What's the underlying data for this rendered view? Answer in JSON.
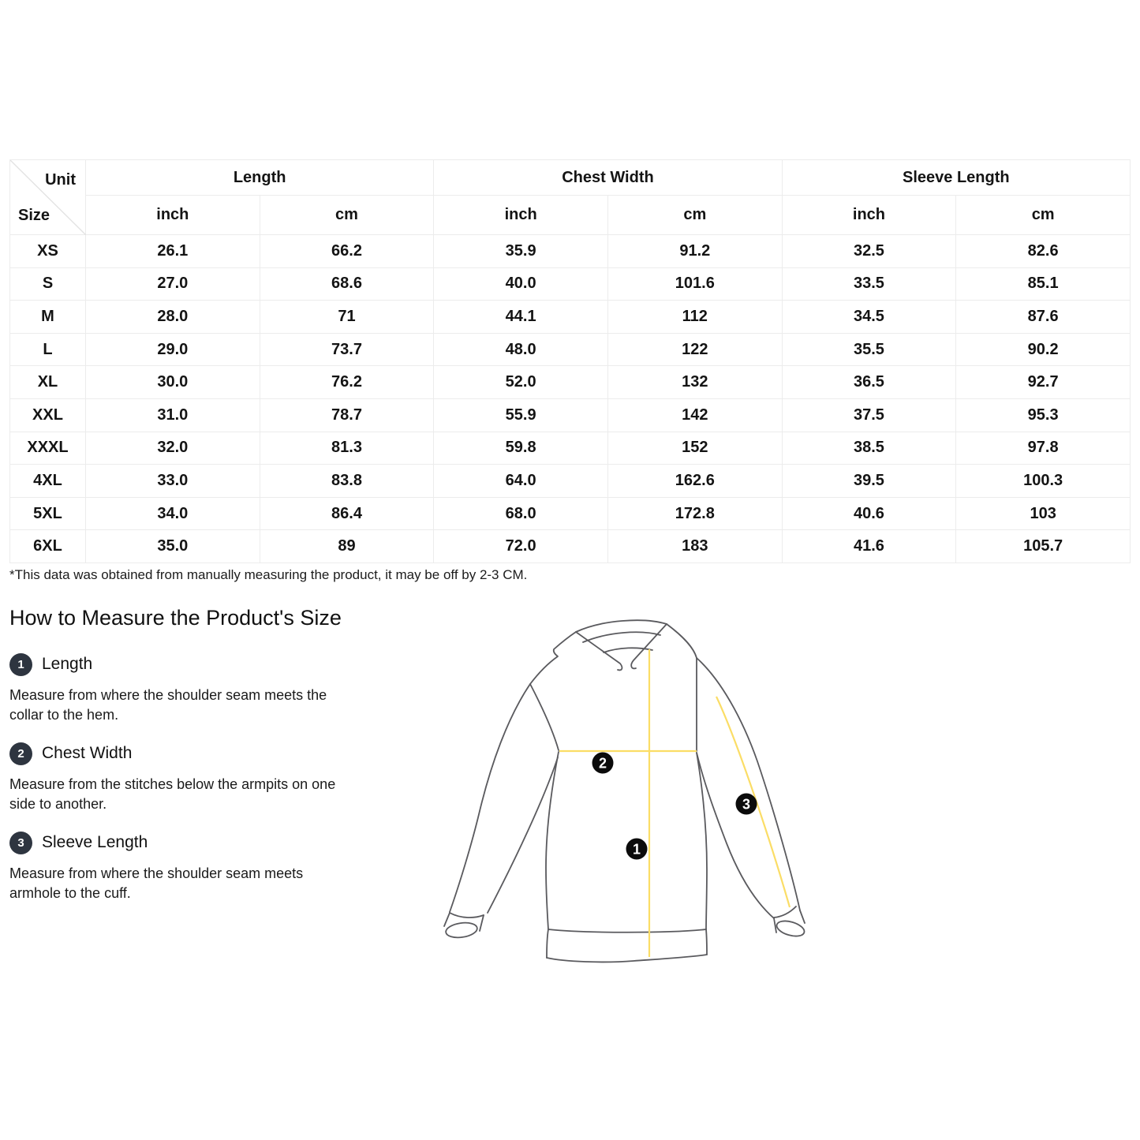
{
  "colors": {
    "accent_yellow": "#FBDD66",
    "marker_black": "#0b0b0b",
    "bullet_dark": "#2E3540",
    "table_border": "#ececec",
    "text_primary": "#141414"
  },
  "table": {
    "corner": {
      "unit_label": "Unit",
      "size_label": "Size"
    },
    "groups": [
      {
        "label": "Length"
      },
      {
        "label": "Chest Width"
      },
      {
        "label": "Sleeve Length"
      }
    ],
    "unit_headers": [
      "inch",
      "cm",
      "inch",
      "cm",
      "inch",
      "cm"
    ],
    "rows": [
      {
        "size": "XS",
        "cells": [
          "26.1",
          "66.2",
          "35.9",
          "91.2",
          "32.5",
          "82.6"
        ]
      },
      {
        "size": "S",
        "cells": [
          "27.0",
          "68.6",
          "40.0",
          "101.6",
          "33.5",
          "85.1"
        ]
      },
      {
        "size": "M",
        "cells": [
          "28.0",
          "71",
          "44.1",
          "112",
          "34.5",
          "87.6"
        ]
      },
      {
        "size": "L",
        "cells": [
          "29.0",
          "73.7",
          "48.0",
          "122",
          "35.5",
          "90.2"
        ]
      },
      {
        "size": "XL",
        "cells": [
          "30.0",
          "76.2",
          "52.0",
          "132",
          "36.5",
          "92.7"
        ]
      },
      {
        "size": "XXL",
        "cells": [
          "31.0",
          "78.7",
          "55.9",
          "142",
          "37.5",
          "95.3"
        ]
      },
      {
        "size": "XXXL",
        "cells": [
          "32.0",
          "81.3",
          "59.8",
          "152",
          "38.5",
          "97.8"
        ]
      },
      {
        "size": "4XL",
        "cells": [
          "33.0",
          "83.8",
          "64.0",
          "162.6",
          "39.5",
          "100.3"
        ]
      },
      {
        "size": "5XL",
        "cells": [
          "34.0",
          "86.4",
          "68.0",
          "172.8",
          "40.6",
          "103"
        ]
      },
      {
        "size": "6XL",
        "cells": [
          "35.0",
          "89",
          "72.0",
          "183",
          "41.6",
          "105.7"
        ]
      }
    ],
    "note": "*This data was obtained from manually measuring the product, it may be off by 2-3 CM."
  },
  "howto": {
    "title": "How to Measure the Product's Size",
    "items": [
      {
        "number": "1",
        "label": "Length",
        "description_lines": [
          "Measure from where the shoulder seam meets the",
          "collar to the hem."
        ]
      },
      {
        "number": "2",
        "label": "Chest Width",
        "description_lines": [
          "Measure from the stitches below the armpits on one",
          "side to another."
        ]
      },
      {
        "number": "3",
        "label": "Sleeve Length",
        "description_lines": [
          "Measure from where the shoulder seam meets",
          "armhole to the cuff."
        ]
      }
    ]
  },
  "diagram": {
    "markers": [
      {
        "number": "1"
      },
      {
        "number": "2"
      },
      {
        "number": "3"
      }
    ]
  }
}
